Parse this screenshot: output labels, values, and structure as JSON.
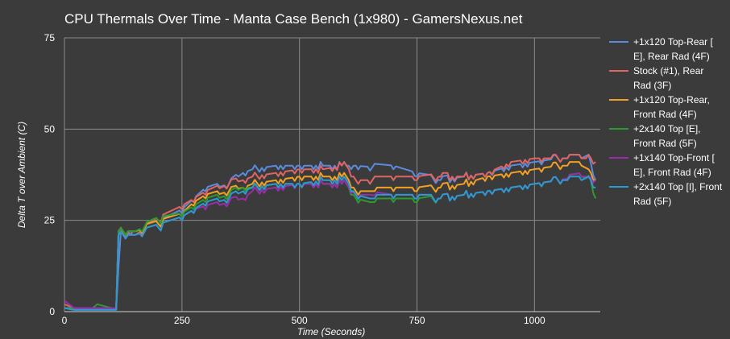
{
  "chart_data": {
    "type": "line",
    "title": "CPU Thermals Over Time - Manta Case Bench (1x980) - GamersNexus.net",
    "xlabel": "Time (Seconds)",
    "ylabel": "Delta T over Ambient (C)",
    "xlim": [
      0,
      1140
    ],
    "ylim": [
      0,
      75
    ],
    "xticks": [
      0,
      250,
      500,
      750,
      1000
    ],
    "yticks": [
      0,
      25,
      50,
      75
    ],
    "grid": true,
    "legend_position": "right",
    "series": [
      {
        "name": "+1x120 Top-Rear [ E], Rear Rad (4F)",
        "legend_lines": [
          "+1x120 Top-Rear [",
          "E], Rear Rad (4F)"
        ],
        "color": "#5b8bdc",
        "x": [
          0,
          20,
          60,
          100,
          110,
          120,
          150,
          200,
          250,
          275,
          300,
          350,
          380,
          400,
          450,
          500,
          550,
          590,
          600,
          620,
          700,
          750,
          800,
          850,
          900,
          950,
          1000,
          1050,
          1100,
          1115,
          1130
        ],
        "y": [
          1,
          0.5,
          0.5,
          0.5,
          0.5,
          22,
          22,
          24,
          27,
          30,
          33,
          35,
          38,
          39,
          40,
          40,
          40,
          40,
          40,
          40,
          39,
          37,
          36,
          37,
          38,
          40,
          41,
          42,
          42,
          43,
          36
        ]
      },
      {
        "name": "Stock (#1), Rear Rad (3F)",
        "legend_lines": [
          "Stock (#1), Rear",
          "Rad (3F)"
        ],
        "color": "#e06464",
        "x": [
          0,
          20,
          60,
          100,
          110,
          115,
          150,
          200,
          250,
          275,
          300,
          350,
          380,
          400,
          450,
          500,
          550,
          590,
          600,
          620,
          700,
          750,
          800,
          850,
          900,
          950,
          1000,
          1050,
          1100,
          1120,
          1130
        ],
        "y": [
          2,
          1,
          1,
          1,
          1,
          22,
          21,
          25,
          28,
          30,
          32,
          35,
          36,
          37,
          38,
          39,
          39,
          40,
          40,
          36,
          36,
          36,
          37,
          37,
          38,
          41,
          42,
          42,
          42,
          42,
          41
        ]
      },
      {
        "name": "+1x120 Top-Rear, Front Rad (4F)",
        "legend_lines": [
          "+1x120 Top-Rear,",
          "Front Rad (4F)"
        ],
        "color": "#f0a024",
        "x": [
          0,
          20,
          60,
          100,
          110,
          115,
          150,
          200,
          250,
          275,
          300,
          350,
          380,
          400,
          450,
          500,
          550,
          590,
          600,
          620,
          650,
          700,
          750,
          800,
          850,
          900,
          950,
          1000,
          1050,
          1100,
          1115,
          1130
        ],
        "y": [
          1,
          1,
          1,
          1,
          1,
          22,
          22,
          24,
          26,
          29,
          31,
          33,
          34,
          35,
          36,
          37,
          37,
          37,
          37,
          33,
          33,
          33,
          33,
          34,
          35,
          37,
          38,
          39,
          40,
          40,
          39,
          36
        ]
      },
      {
        "name": "+2x140 Top [E], Front Rad (5F)",
        "legend_lines": [
          "+2x140 Top [E],",
          "Front Rad (5F)"
        ],
        "color": "#2e9a2e",
        "x": [
          0,
          20,
          60,
          70,
          100,
          110,
          115,
          150,
          200,
          250,
          275,
          300,
          350,
          380,
          400,
          450,
          500,
          550,
          590,
          600,
          620,
          650,
          700,
          750,
          800,
          850,
          900,
          950,
          1000,
          1050,
          1100,
          1120,
          1130
        ],
        "y": [
          1,
          1,
          1,
          2,
          1,
          1,
          22,
          22,
          25,
          26,
          28,
          30,
          32,
          34,
          34,
          35,
          35,
          35,
          35,
          35,
          31,
          30,
          30,
          30,
          31,
          32,
          33,
          34,
          35,
          36,
          37,
          36,
          31
        ]
      },
      {
        "name": "+1x140 Top-Front [ E], Front Rad (4F)",
        "legend_lines": [
          "+1x140 Top-Front [",
          "E], Front Rad (4F)"
        ],
        "color": "#9a2ea8",
        "x": [
          0,
          20,
          60,
          100,
          110,
          115,
          150,
          200,
          250,
          275,
          300,
          350,
          380,
          400,
          450,
          500,
          550,
          590,
          600,
          620,
          650,
          700,
          750,
          800,
          850,
          900,
          950,
          1000,
          1050,
          1100,
          1115,
          1130
        ],
        "y": [
          3,
          1,
          1,
          1,
          1,
          21,
          21,
          23,
          25,
          27,
          28,
          30,
          31,
          33,
          34,
          35,
          35,
          35,
          35,
          32,
          32,
          31,
          31,
          31,
          32,
          33,
          34,
          35,
          36,
          37,
          37,
          36
        ]
      },
      {
        "name": "+2x140 Top [I], Front Rad (5F)",
        "legend_lines": [
          "+2x140 Top [I], Front",
          "Rad (5F)"
        ],
        "color": "#2a9ad0",
        "x": [
          0,
          20,
          60,
          100,
          110,
          115,
          150,
          200,
          250,
          275,
          300,
          350,
          380,
          400,
          450,
          500,
          550,
          590,
          600,
          620,
          650,
          700,
          750,
          800,
          850,
          900,
          950,
          1000,
          1050,
          1100,
          1115,
          1130
        ],
        "y": [
          1,
          0.5,
          0.5,
          0.5,
          0.5,
          21,
          21,
          23,
          25,
          27,
          29,
          31,
          33,
          34,
          35,
          35,
          36,
          36,
          36,
          32,
          31,
          31,
          31,
          31,
          32,
          33,
          34,
          35,
          36,
          36,
          37,
          34
        ]
      }
    ]
  }
}
